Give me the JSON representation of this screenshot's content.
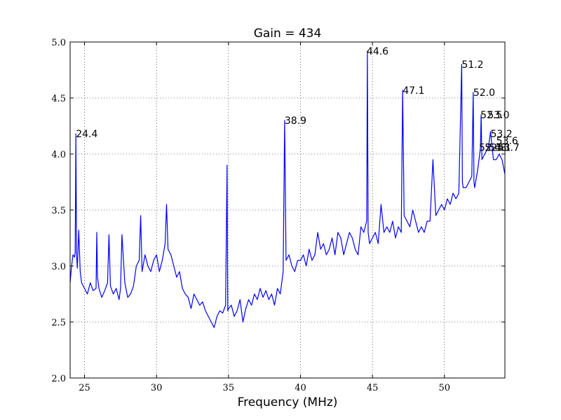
{
  "chart_data": {
    "type": "line",
    "title": "Gain = 434",
    "xlabel": "Frequency (MHz)",
    "ylabel": "",
    "xlim": [
      24,
      54.2
    ],
    "ylim": [
      2.0,
      5.0
    ],
    "xticks": [
      25,
      30,
      35,
      40,
      45,
      50
    ],
    "yticks": [
      2.0,
      2.5,
      3.0,
      3.5,
      4.0,
      4.5,
      5.0
    ],
    "xtick_labels": [
      "25",
      "30",
      "35",
      "40",
      "45",
      "50"
    ],
    "ytick_labels": [
      "2.0",
      "2.5",
      "3.0",
      "3.5",
      "4.0",
      "4.5",
      "5.0"
    ],
    "grid": true,
    "line_color": "#0000ff",
    "series": [
      {
        "x": [
          24.0,
          24.1,
          24.2,
          24.3,
          24.35,
          24.4,
          24.45,
          24.5,
          24.6,
          24.7,
          24.8,
          25.0,
          25.2,
          25.4,
          25.6,
          25.8,
          25.85,
          25.9,
          26.0,
          26.2,
          26.4,
          26.6,
          26.7,
          26.8,
          27.0,
          27.2,
          27.4,
          27.5,
          27.6,
          27.8,
          28.0,
          28.2,
          28.4,
          28.6,
          28.8,
          28.9,
          29.0,
          29.2,
          29.4,
          29.6,
          29.8,
          30.0,
          30.2,
          30.4,
          30.6,
          30.7,
          30.8,
          31.0,
          31.2,
          31.4,
          31.6,
          31.8,
          32.0,
          32.2,
          32.4,
          32.6,
          32.8,
          33.0,
          33.2,
          33.4,
          33.6,
          33.8,
          34.0,
          34.2,
          34.4,
          34.6,
          34.8,
          34.9,
          34.95,
          35.0,
          35.2,
          35.4,
          35.6,
          35.8,
          36.0,
          36.2,
          36.4,
          36.6,
          36.8,
          37.0,
          37.2,
          37.4,
          37.6,
          37.8,
          38.0,
          38.2,
          38.4,
          38.6,
          38.8,
          38.9,
          39.0,
          39.2,
          39.4,
          39.6,
          39.8,
          40.0,
          40.2,
          40.4,
          40.6,
          40.8,
          41.0,
          41.2,
          41.4,
          41.6,
          41.8,
          42.0,
          42.2,
          42.4,
          42.6,
          42.8,
          43.0,
          43.2,
          43.4,
          43.6,
          43.8,
          44.0,
          44.2,
          44.4,
          44.6,
          44.65,
          44.7,
          44.8,
          45.0,
          45.2,
          45.4,
          45.6,
          45.8,
          46.0,
          46.2,
          46.4,
          46.6,
          46.8,
          47.0,
          47.1,
          47.2,
          47.4,
          47.6,
          47.8,
          48.0,
          48.2,
          48.4,
          48.6,
          48.8,
          49.0,
          49.2,
          49.4,
          49.6,
          49.8,
          50.0,
          50.2,
          50.4,
          50.6,
          50.8,
          51.0,
          51.2,
          51.25,
          51.3,
          51.5,
          51.7,
          51.9,
          52.0,
          52.05,
          52.1,
          52.3,
          52.5,
          52.55,
          52.6,
          52.8,
          53.0,
          53.1,
          53.2,
          53.4,
          53.6,
          53.8,
          54.0,
          54.2
        ],
        "y": [
          2.85,
          3.0,
          3.1,
          3.08,
          3.12,
          4.18,
          3.1,
          2.98,
          3.32,
          2.95,
          2.85,
          2.8,
          2.75,
          2.85,
          2.78,
          2.8,
          3.3,
          2.9,
          2.8,
          2.72,
          2.78,
          2.85,
          3.28,
          2.82,
          2.75,
          2.8,
          2.7,
          2.8,
          3.28,
          2.85,
          2.72,
          2.75,
          2.82,
          3.0,
          3.05,
          3.45,
          2.95,
          3.1,
          3.0,
          2.95,
          3.05,
          3.1,
          2.95,
          3.05,
          3.2,
          3.55,
          3.15,
          3.1,
          3.0,
          2.9,
          2.95,
          2.8,
          2.75,
          2.72,
          2.62,
          2.75,
          2.7,
          2.65,
          2.68,
          2.6,
          2.55,
          2.5,
          2.45,
          2.55,
          2.6,
          2.58,
          2.65,
          3.9,
          2.6,
          2.62,
          2.65,
          2.55,
          2.6,
          2.7,
          2.5,
          2.62,
          2.7,
          2.65,
          2.75,
          2.7,
          2.8,
          2.72,
          2.78,
          2.7,
          2.75,
          2.65,
          2.8,
          2.75,
          2.95,
          4.3,
          3.05,
          3.1,
          3.0,
          2.95,
          3.05,
          3.05,
          3.1,
          3.0,
          3.15,
          3.05,
          3.1,
          3.3,
          3.15,
          3.2,
          3.1,
          3.15,
          3.25,
          3.1,
          3.3,
          3.25,
          3.1,
          3.2,
          3.3,
          3.25,
          3.15,
          3.1,
          3.35,
          3.3,
          3.4,
          4.92,
          3.3,
          3.2,
          3.25,
          3.3,
          3.2,
          3.55,
          3.3,
          3.35,
          3.3,
          3.4,
          3.25,
          3.35,
          3.3,
          4.57,
          3.45,
          3.4,
          3.35,
          3.5,
          3.4,
          3.3,
          3.35,
          3.3,
          3.4,
          3.4,
          3.95,
          3.45,
          3.5,
          3.55,
          3.5,
          3.6,
          3.55,
          3.65,
          3.6,
          3.65,
          4.8,
          3.75,
          3.7,
          3.7,
          3.75,
          3.8,
          4.55,
          3.75,
          3.7,
          3.85,
          4.05,
          4.35,
          3.95,
          4.0,
          4.05,
          4.1,
          4.2,
          3.95,
          3.95,
          4.0,
          3.95,
          3.82
        ]
      }
    ],
    "annotations": [
      {
        "x": 24.4,
        "y": 4.18,
        "text": "24.4"
      },
      {
        "x": 38.9,
        "y": 4.3,
        "text": "38.9"
      },
      {
        "x": 44.6,
        "y": 4.92,
        "text": "44.6"
      },
      {
        "x": 47.1,
        "y": 4.57,
        "text": "47.1"
      },
      {
        "x": 51.2,
        "y": 4.8,
        "text": "51.2"
      },
      {
        "x": 52.0,
        "y": 4.55,
        "text": "52.0"
      },
      {
        "x": 52.5,
        "y": 4.35,
        "text": "52.5"
      },
      {
        "x": 53.0,
        "y": 4.35,
        "text": "53.0"
      },
      {
        "x": 52.4,
        "y": 4.06,
        "text": "52.4"
      },
      {
        "x": 52.8,
        "y": 4.06,
        "text": "52.8"
      },
      {
        "x": 53.1,
        "y": 4.06,
        "text": "53.1"
      },
      {
        "x": 53.2,
        "y": 4.18,
        "text": "53.2"
      },
      {
        "x": 53.6,
        "y": 4.12,
        "text": "53.6"
      },
      {
        "x": 53.7,
        "y": 4.06,
        "text": "53.7"
      }
    ]
  }
}
